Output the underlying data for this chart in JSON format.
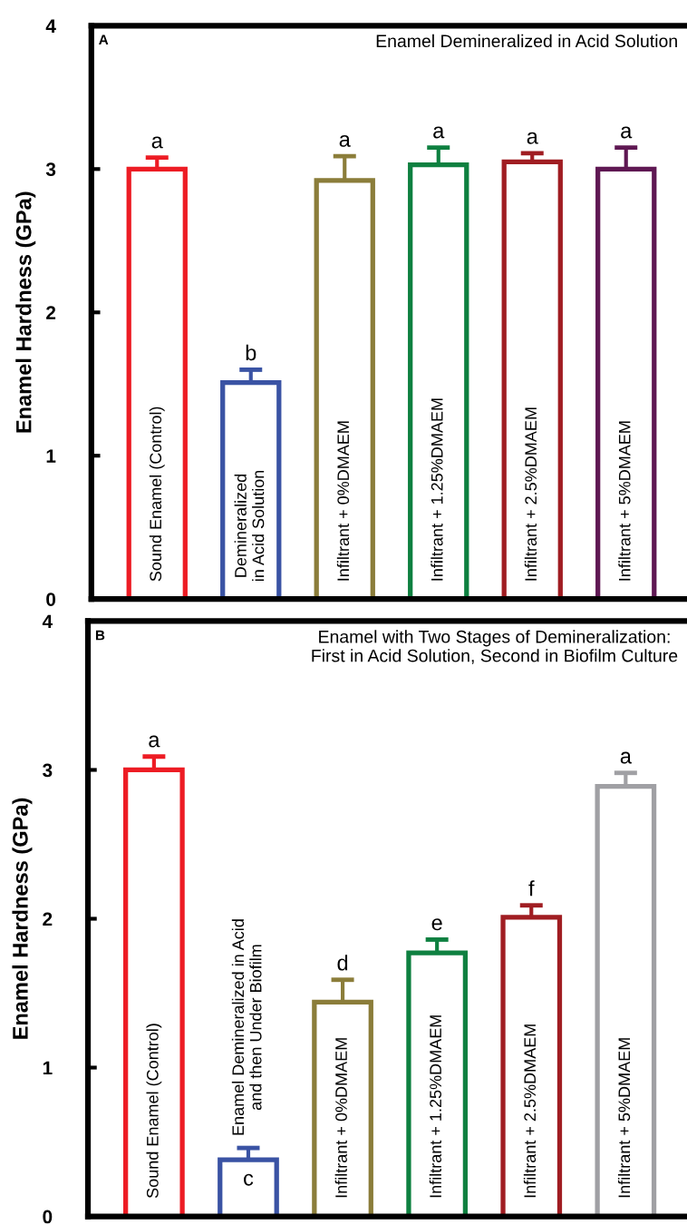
{
  "chart_data": [
    {
      "type": "bar",
      "title": "Enamel Demineralized in Acid Solution",
      "ylabel": "Enamel Hardness (GPa)",
      "categories": [
        "Sound Enamel (Control)",
        "Demineralized\nin Acid Solution",
        "Infiltrant + 0%DMAEM",
        "Infiltrant + 1.25%DMAEM",
        "Infiltrant + 2.5%DMAEM",
        "Infiltrant + 5%DMAEM"
      ],
      "values": [
        3.0,
        1.51,
        2.92,
        3.03,
        3.05,
        3.0
      ],
      "errors": [
        0.08,
        0.09,
        0.17,
        0.12,
        0.06,
        0.15
      ],
      "colors": [
        "#ed1c24",
        "#3a53a4",
        "#8b7d3a",
        "#0e8040",
        "#a01d22",
        "#5f1853"
      ],
      "ylim": [
        0,
        4
      ],
      "yticks": [
        0,
        1,
        2,
        3,
        4
      ],
      "grid": false,
      "legend": false,
      "tick_labels": "y",
      "value_labels": [
        "a",
        "b",
        "a",
        "a",
        "a",
        "a"
      ],
      "annotations": [
        "A"
      ]
    },
    {
      "type": "bar",
      "title": "Enamel with Two Stages of Demineralization:\nFirst in Acid Solution, Second in Biofilm Culture",
      "ylabel": "Enamel Hardness (GPa)",
      "categories": [
        "Sound Enamel (Control)",
        "Enamel Demineralized in Acid\nand then Under Biofilm",
        "Infiltrant + 0%DMAEM",
        "Infiltrant + 1.25%DMAEM",
        "Infiltrant + 2.5%DMAEM",
        "Infiltrant + 5%DMAEM"
      ],
      "values": [
        3.0,
        0.38,
        1.44,
        1.77,
        2.01,
        2.89
      ],
      "errors": [
        0.09,
        0.08,
        0.15,
        0.09,
        0.08,
        0.09
      ],
      "colors": [
        "#ed1c24",
        "#3a53a4",
        "#8b7d3a",
        "#0e8040",
        "#a01d22",
        "#a0a0a4"
      ],
      "ylim": [
        0,
        4
      ],
      "yticks": [
        0,
        1,
        2,
        3,
        4
      ],
      "grid": false,
      "legend": false,
      "tick_labels": "y",
      "value_labels": [
        "a",
        "c",
        "d",
        "e",
        "f",
        "a"
      ],
      "annotations": [
        "B"
      ]
    }
  ]
}
